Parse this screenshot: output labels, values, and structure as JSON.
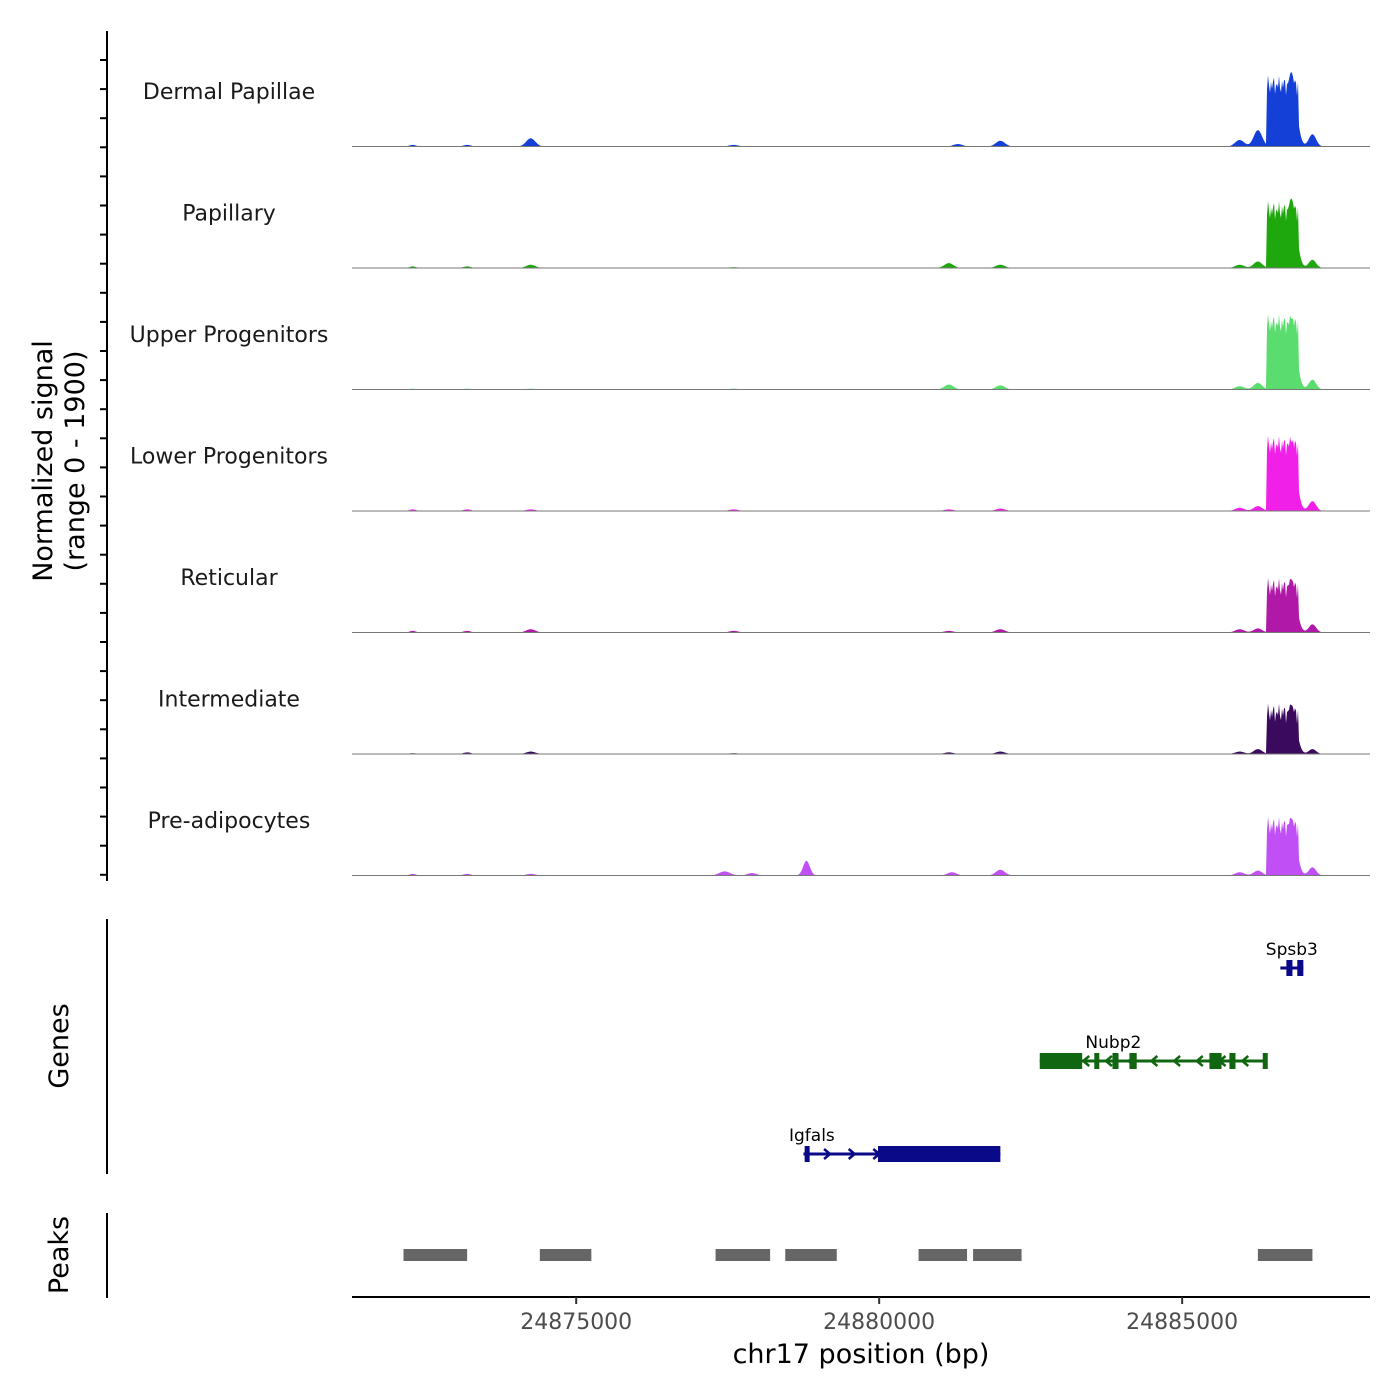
{
  "chart_data": {
    "type": "coverage-tracks",
    "xlabel": "chr17 position (bp)",
    "xlim": [
      24871300,
      24888100
    ],
    "xticks": [
      24875000,
      24880000,
      24885000
    ],
    "xtick_labels": [
      "24875000",
      "24880000",
      "24885000"
    ],
    "ylabel_line1": "Normalized signal",
    "ylabel_line2": "(range 0 - 1900)",
    "yrange": [
      0,
      1900
    ],
    "genes_label": "Genes",
    "peaks_label": "Peaks",
    "coverage_tracks": [
      {
        "name": "Dermal Papillae",
        "color": "#1540d8",
        "peaks": [
          [
            24872300,
            0.02,
            100
          ],
          [
            24873200,
            0.02,
            120
          ],
          [
            24874250,
            0.1,
            150
          ],
          [
            24877600,
            0.02,
            150
          ],
          [
            24881300,
            0.03,
            150
          ],
          [
            24882000,
            0.07,
            150
          ],
          [
            24885950,
            0.08,
            150
          ],
          [
            24886250,
            0.2,
            140
          ],
          [
            24886800,
            0.91,
            160
          ],
          [
            24887150,
            0.15,
            120
          ]
        ],
        "plateau": [
          24886400,
          24886920,
          0.75
        ]
      },
      {
        "name": "Papillary",
        "color": "#1fa80e",
        "peaks": [
          [
            24872300,
            0.02,
            100
          ],
          [
            24873200,
            0.02,
            120
          ],
          [
            24874250,
            0.04,
            150
          ],
          [
            24877600,
            0.01,
            150
          ],
          [
            24881150,
            0.06,
            150
          ],
          [
            24882000,
            0.04,
            150
          ],
          [
            24885950,
            0.04,
            150
          ],
          [
            24886250,
            0.08,
            140
          ],
          [
            24886800,
            0.85,
            160
          ],
          [
            24887150,
            0.1,
            120
          ]
        ],
        "plateau": [
          24886400,
          24886920,
          0.7
        ]
      },
      {
        "name": "Upper Progenitors",
        "color": "#5bdc6e",
        "peaks": [
          [
            24872300,
            0.01,
            100
          ],
          [
            24873200,
            0.01,
            120
          ],
          [
            24874250,
            0.01,
            150
          ],
          [
            24877600,
            0.01,
            150
          ],
          [
            24881150,
            0.06,
            150
          ],
          [
            24882000,
            0.05,
            150
          ],
          [
            24885950,
            0.04,
            150
          ],
          [
            24886250,
            0.08,
            140
          ],
          [
            24886800,
            0.87,
            160
          ],
          [
            24887150,
            0.12,
            120
          ]
        ],
        "plateau": [
          24886400,
          24886920,
          0.8
        ]
      },
      {
        "name": "Lower Progenitors",
        "color": "#f020e8",
        "peaks": [
          [
            24872300,
            0.02,
            100
          ],
          [
            24873200,
            0.02,
            120
          ],
          [
            24874250,
            0.02,
            150
          ],
          [
            24877600,
            0.02,
            150
          ],
          [
            24881150,
            0.02,
            150
          ],
          [
            24882000,
            0.03,
            150
          ],
          [
            24885950,
            0.04,
            150
          ],
          [
            24886250,
            0.06,
            140
          ],
          [
            24886800,
            0.85,
            160
          ],
          [
            24887150,
            0.12,
            120
          ]
        ],
        "plateau": [
          24886400,
          24886920,
          0.8
        ]
      },
      {
        "name": "Reticular",
        "color": "#b018a8",
        "peaks": [
          [
            24872300,
            0.02,
            100
          ],
          [
            24873200,
            0.02,
            120
          ],
          [
            24874250,
            0.04,
            150
          ],
          [
            24877600,
            0.02,
            150
          ],
          [
            24881150,
            0.02,
            150
          ],
          [
            24882000,
            0.04,
            150
          ],
          [
            24885950,
            0.04,
            150
          ],
          [
            24886250,
            0.05,
            140
          ],
          [
            24886800,
            0.65,
            160
          ],
          [
            24887150,
            0.1,
            120
          ]
        ],
        "plateau": [
          24886400,
          24886920,
          0.55
        ]
      },
      {
        "name": "Intermediate",
        "color": "#3a0a5e",
        "peaks": [
          [
            24872300,
            0.01,
            100
          ],
          [
            24873200,
            0.02,
            120
          ],
          [
            24874250,
            0.03,
            150
          ],
          [
            24877600,
            0.01,
            150
          ],
          [
            24881150,
            0.02,
            150
          ],
          [
            24882000,
            0.03,
            150
          ],
          [
            24885950,
            0.03,
            150
          ],
          [
            24886250,
            0.06,
            140
          ],
          [
            24886800,
            0.6,
            160
          ],
          [
            24887150,
            0.06,
            120
          ]
        ],
        "plateau": [
          24886400,
          24886920,
          0.5
        ]
      },
      {
        "name": "Pre-adipocytes",
        "color": "#c050f5",
        "peaks": [
          [
            24872300,
            0.02,
            100
          ],
          [
            24873200,
            0.02,
            120
          ],
          [
            24874250,
            0.02,
            150
          ],
          [
            24877450,
            0.05,
            180
          ],
          [
            24877900,
            0.03,
            150
          ],
          [
            24878800,
            0.18,
            110
          ],
          [
            24881200,
            0.04,
            150
          ],
          [
            24882000,
            0.07,
            150
          ],
          [
            24885950,
            0.04,
            150
          ],
          [
            24886250,
            0.06,
            140
          ],
          [
            24886800,
            0.7,
            160
          ],
          [
            24887150,
            0.1,
            120
          ]
        ],
        "plateau": [
          24886400,
          24886920,
          0.6
        ]
      }
    ],
    "genes": [
      {
        "name": "Spsb3",
        "color": "#0a0a88",
        "start": 24886620,
        "end": 24887000,
        "row": 0,
        "strand": "+",
        "exons": [
          [
            24886720,
            24886820
          ],
          [
            24886900,
            24887000
          ]
        ]
      },
      {
        "name": "Nubp2",
        "color": "#116611",
        "start": 24882650,
        "end": 24886400,
        "row": 1,
        "strand": "-",
        "exons": [
          [
            24882650,
            24883350
          ],
          [
            24883550,
            24883600
          ],
          [
            24883850,
            24883950
          ],
          [
            24884130,
            24884250
          ],
          [
            24885450,
            24885650
          ],
          [
            24885780,
            24885880
          ],
          [
            24886330,
            24886400
          ]
        ]
      },
      {
        "name": "Igfals",
        "color": "#0a0a88",
        "start": 24878750,
        "end": 24882000,
        "row": 2,
        "strand": "+",
        "exons": [
          [
            24878770,
            24878850
          ],
          [
            24879980,
            24882000
          ]
        ]
      }
    ],
    "peaks_regions": [
      [
        24872150,
        24873200
      ],
      [
        24874400,
        24875250
      ],
      [
        24877300,
        24878200
      ],
      [
        24878450,
        24879300
      ],
      [
        24880650,
        24881450
      ],
      [
        24881550,
        24882350
      ],
      [
        24886250,
        24887150
      ]
    ]
  }
}
